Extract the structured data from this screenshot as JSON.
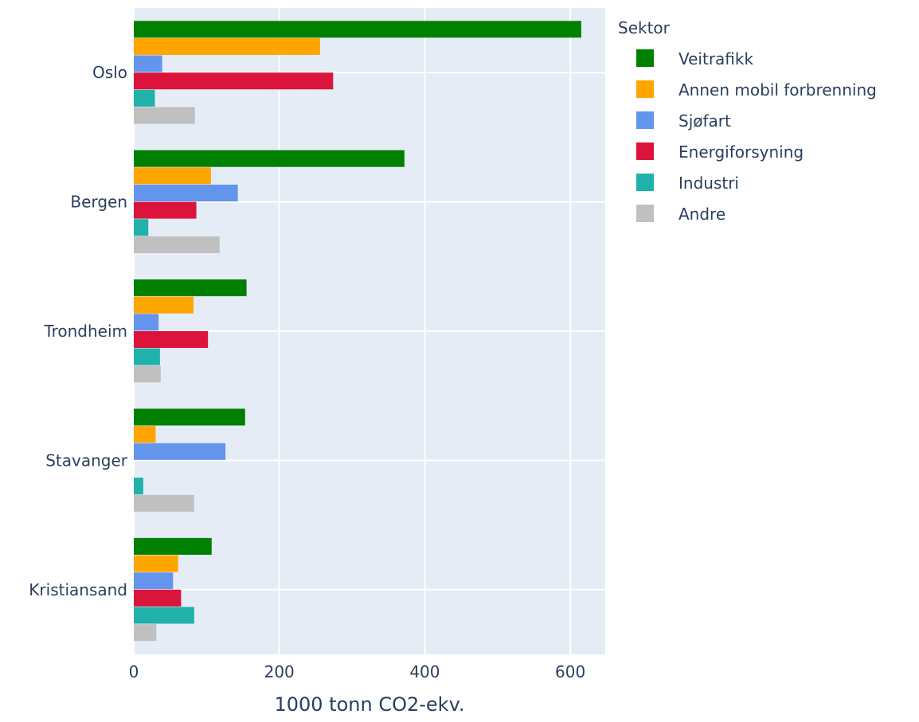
{
  "chart_data": {
    "type": "bar",
    "orientation": "horizontal",
    "categories": [
      "Oslo",
      "Bergen",
      "Trondheim",
      "Stavanger",
      "Kristiansand"
    ],
    "series": [
      {
        "name": "Veitrafikk",
        "color": "#008000",
        "values": [
          615,
          372,
          155,
          153,
          107
        ]
      },
      {
        "name": "Annen mobil forbrenning",
        "color": "#FFA500",
        "values": [
          256,
          106,
          82,
          30,
          61
        ]
      },
      {
        "name": "Sjøfart",
        "color": "#6495ED",
        "values": [
          39,
          143,
          34,
          126,
          54
        ]
      },
      {
        "name": "Energiforsyning",
        "color": "#DC143C",
        "values": [
          274,
          86,
          102,
          0,
          65
        ]
      },
      {
        "name": "Industri",
        "color": "#20B2AA",
        "values": [
          29,
          20,
          36,
          13,
          83
        ]
      },
      {
        "name": "Andre",
        "color": "#C0C0C0",
        "values": [
          84,
          118,
          37,
          83,
          31
        ]
      }
    ],
    "xlabel": "1000 tonn CO2-ekv.",
    "ylabel": "",
    "xlim": [
      0,
      648
    ],
    "xticks": [
      0,
      200,
      400,
      600
    ],
    "legend": {
      "title": "Sektor",
      "position": "top-right"
    },
    "grid": true
  }
}
